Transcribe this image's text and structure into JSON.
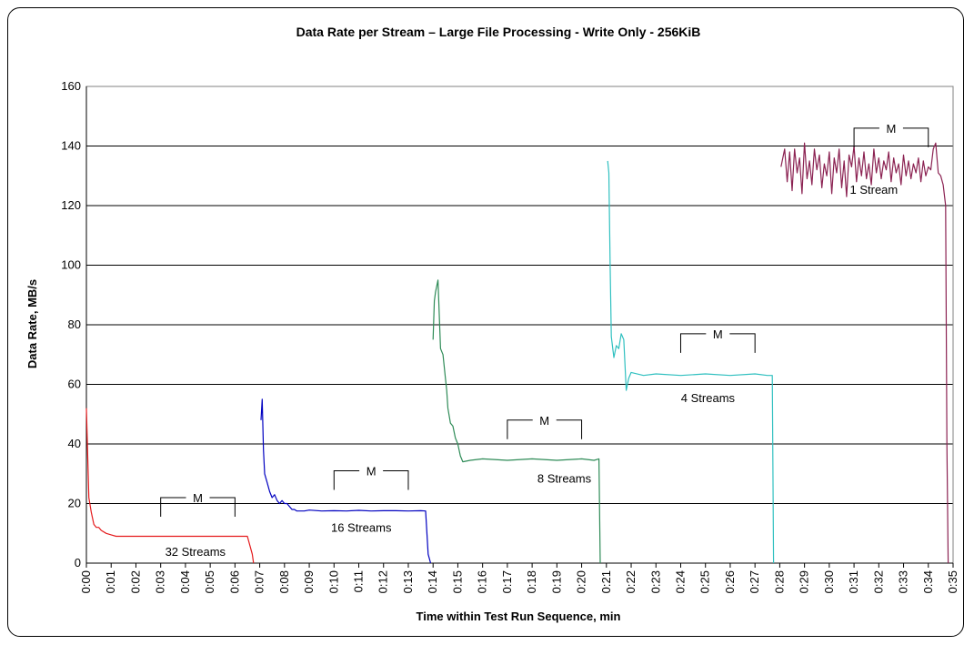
{
  "chart_data": {
    "type": "line",
    "title": "Data Rate per Stream – Large File Processing - Write Only - 256KiB",
    "xlabel": "Time within Test Run Sequence, min",
    "ylabel": "Data Rate, MB/s",
    "ylim": [
      0,
      160
    ],
    "yticks": [
      "0",
      "20",
      "40",
      "60",
      "80",
      "100",
      "120",
      "140",
      "160"
    ],
    "xlim": [
      0,
      35
    ],
    "xticks": [
      "0:00",
      "0:01",
      "0:02",
      "0:03",
      "0:04",
      "0:05",
      "0:06",
      "0:07",
      "0:08",
      "0:09",
      "0:10",
      "0:11",
      "0:12",
      "0:13",
      "0:14",
      "0:15",
      "0:16",
      "0:17",
      "0:18",
      "0:19",
      "0:20",
      "0:21",
      "0:22",
      "0:23",
      "0:24",
      "0:25",
      "0:26",
      "0:27",
      "0:28",
      "0:29",
      "0:30",
      "0:31",
      "0:32",
      "0:33",
      "0:34",
      "0:35"
    ],
    "grid": "horizontal",
    "legend": "none",
    "colors": {
      "32 Streams": "#e41a1c",
      "16 Streams": "#0000c0",
      "8 Streams": "#2e8b57",
      "4 Streams": "#30c0c0",
      "1 Stream": "#8b2252"
    },
    "series": [
      {
        "key": "s32",
        "x": [
          0.0,
          0.1,
          0.2,
          0.3,
          0.4,
          0.5,
          0.6,
          0.8,
          1.0,
          1.2,
          2.0,
          3.0,
          4.0,
          5.0,
          6.0,
          6.5,
          6.7,
          6.75
        ],
        "y": [
          52,
          22,
          17,
          13,
          12,
          12,
          11,
          10,
          9.5,
          9,
          9,
          9,
          9,
          9,
          9,
          9,
          3,
          0
        ]
      },
      {
        "key": "s16",
        "x": [
          7.05,
          7.1,
          7.15,
          7.2,
          7.3,
          7.4,
          7.5,
          7.6,
          7.7,
          7.8,
          7.9,
          8.0,
          8.1,
          8.2,
          8.3,
          8.4,
          8.5,
          8.6,
          8.8,
          9.0,
          9.5,
          10.0,
          10.5,
          11.0,
          11.5,
          12.0,
          12.5,
          13.0,
          13.5,
          13.7,
          13.8,
          13.9
        ],
        "y": [
          48,
          55,
          38,
          30,
          27,
          24,
          22,
          23,
          21,
          20,
          21,
          20,
          20,
          19,
          18,
          18,
          17.5,
          17.5,
          17.5,
          17.8,
          17.5,
          17.6,
          17.5,
          17.7,
          17.5,
          17.6,
          17.6,
          17.5,
          17.6,
          17.5,
          3,
          0
        ]
      },
      {
        "key": "s8",
        "x": [
          14.0,
          14.05,
          14.1,
          14.2,
          14.3,
          14.4,
          14.5,
          14.55,
          14.6,
          14.7,
          14.8,
          14.9,
          15.0,
          15.1,
          15.2,
          15.5,
          16.0,
          17.0,
          18.0,
          19.0,
          20.0,
          20.5,
          20.7,
          20.75
        ],
        "y": [
          75,
          88,
          91,
          95,
          72,
          70,
          62,
          58,
          52,
          47,
          46,
          42,
          40,
          36,
          34,
          34.5,
          35,
          34.5,
          35,
          34.5,
          35,
          34.5,
          35,
          0
        ]
      },
      {
        "key": "s4",
        "x": [
          21.05,
          21.1,
          21.15,
          21.2,
          21.3,
          21.4,
          21.5,
          21.6,
          21.7,
          21.8,
          21.9,
          22.0,
          22.5,
          23.0,
          24.0,
          25.0,
          26.0,
          27.0,
          27.5,
          27.7,
          27.75
        ],
        "y": [
          135,
          131,
          100,
          76,
          69,
          73,
          72,
          77,
          75,
          58,
          62,
          64,
          63,
          63.5,
          63,
          63.5,
          63,
          63.5,
          63,
          63,
          0
        ]
      },
      {
        "key": "s1",
        "x": [
          28.05,
          28.2,
          28.3,
          28.4,
          28.5,
          28.6,
          28.7,
          28.8,
          28.9,
          29.0,
          29.1,
          29.2,
          29.3,
          29.4,
          29.5,
          29.6,
          29.7,
          29.8,
          29.9,
          30.0,
          30.1,
          30.2,
          30.3,
          30.4,
          30.5,
          30.6,
          30.7,
          30.8,
          30.9,
          31.0,
          31.1,
          31.2,
          31.3,
          31.4,
          31.5,
          31.6,
          31.7,
          31.8,
          31.9,
          32.0,
          32.1,
          32.2,
          32.3,
          32.4,
          32.5,
          32.6,
          32.7,
          32.8,
          32.9,
          33.0,
          33.1,
          33.2,
          33.3,
          33.4,
          33.5,
          33.6,
          33.7,
          33.8,
          33.9,
          34.0,
          34.1,
          34.2,
          34.3,
          34.4,
          34.5,
          34.6,
          34.7,
          34.75,
          34.8
        ],
        "y": [
          133,
          139,
          128,
          138,
          125,
          139,
          131,
          136,
          124,
          141,
          129,
          135,
          127,
          139,
          132,
          137,
          126,
          134,
          130,
          138,
          124,
          136,
          131,
          139,
          126,
          135,
          123,
          137,
          133,
          140,
          128,
          136,
          130,
          138,
          129,
          134,
          127,
          139,
          131,
          136,
          129,
          135,
          132,
          138,
          128,
          136,
          131,
          134,
          127,
          137,
          130,
          135,
          129,
          134,
          131,
          136,
          128,
          135,
          130,
          133,
          132,
          139,
          141,
          131,
          130,
          127,
          120,
          40,
          0
        ]
      }
    ],
    "annotations": [
      {
        "label": "32 Streams",
        "x": 4.4,
        "y": 2.5
      },
      {
        "label": "16 Streams",
        "x": 11.1,
        "y": 10.5
      },
      {
        "label": "8 Streams",
        "x": 19.3,
        "y": 27
      },
      {
        "label": "4 Streams",
        "x": 25.1,
        "y": 54
      },
      {
        "label": "1 Stream",
        "x": 31.8,
        "y": 124
      }
    ],
    "markers": [
      {
        "label": "M",
        "x0": 3.0,
        "x1": 6.0,
        "y": 22
      },
      {
        "label": "M",
        "x0": 10.0,
        "x1": 13.0,
        "y": 31
      },
      {
        "label": "M",
        "x0": 17.0,
        "x1": 20.0,
        "y": 48
      },
      {
        "label": "M",
        "x0": 24.0,
        "x1": 27.0,
        "y": 77
      },
      {
        "label": "M",
        "x0": 31.0,
        "x1": 34.0,
        "y": 146
      }
    ]
  }
}
